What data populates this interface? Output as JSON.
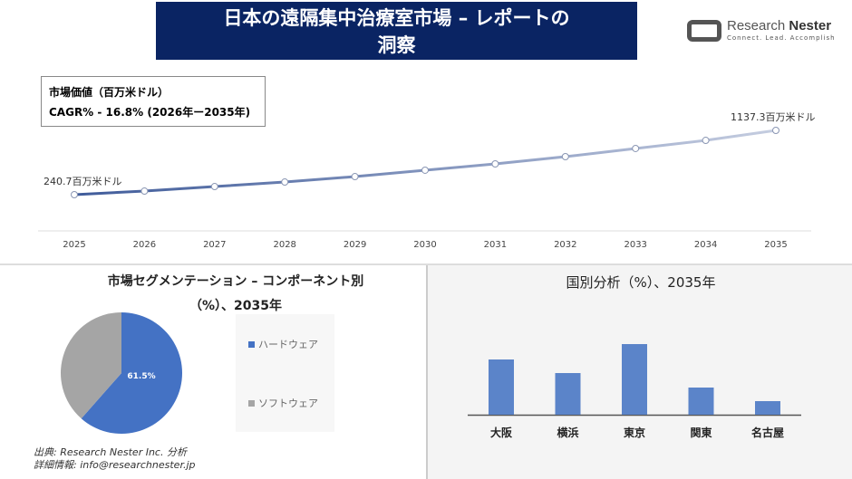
{
  "header": {
    "title_line1": "日本の遠隔集中治療室市場 – レポートの",
    "title_line2": "洞察",
    "logo_name1": "Research",
    "logo_name2": "Nester",
    "logo_tagline": "Connect. Lead. Accomplish"
  },
  "kpi": {
    "line1": "市場価値（百万米ドル）",
    "line2": "CAGR% - 16.8% (2026年ー2035年)"
  },
  "chart_data": [
    {
      "type": "line",
      "x": [
        "2025",
        "2026",
        "2027",
        "2028",
        "2029",
        "2030",
        "2031",
        "2032",
        "2033",
        "2034",
        "2035"
      ],
      "values": [
        240.7,
        291,
        354,
        417,
        493,
        582,
        670,
        771,
        885,
        998,
        1137.3
      ],
      "start_label": "240.7百万米ドル",
      "end_label": "1137.3百万米ドル",
      "colors": [
        "#3f5b9a",
        "#c5cde0"
      ]
    },
    {
      "type": "pie",
      "title_line1": "市場セグメンテーション – コンポーネント別",
      "title_line2": "（%）、2035年",
      "slices": [
        {
          "name": "ハードウェア",
          "value": 61.5,
          "color": "#4472c4",
          "label": "61.5%"
        },
        {
          "name": "ソフトウェア",
          "value": 38.5,
          "color": "#a5a5a5"
        }
      ]
    },
    {
      "type": "bar",
      "title": "国別分析（%）、2035年",
      "categories": [
        "大阪",
        "横浜",
        "東京",
        "関東",
        "名古屋"
      ],
      "values": [
        61,
        46,
        78,
        30,
        15
      ],
      "color": "#5b84c9"
    }
  ],
  "footer": {
    "source": "出典: Research Nester Inc. 分析",
    "info": "詳細情報: info@researchnester.jp"
  }
}
